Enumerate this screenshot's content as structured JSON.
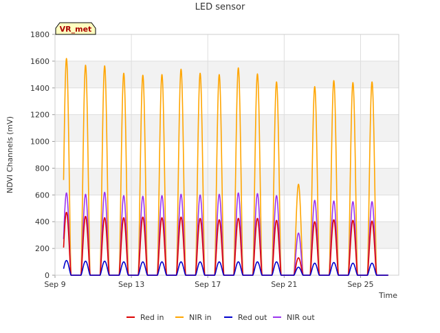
{
  "chart_data": {
    "type": "line",
    "title": "LED sensor",
    "xlabel": "Time",
    "ylabel": "NDVI Channels (mV)",
    "site_label": "VR_met",
    "x_ticks": [
      "Sep 9",
      "Sep 13",
      "Sep 17",
      "Sep 21",
      "Sep 25"
    ],
    "x_tick_days": [
      9,
      13,
      17,
      21,
      25
    ],
    "xlim": [
      9,
      27
    ],
    "ylim": [
      0,
      1800
    ],
    "y_ticks": [
      0,
      200,
      400,
      600,
      800,
      1000,
      1200,
      1400,
      1600,
      1800
    ],
    "grid": true,
    "legend_position": "bottom",
    "peak_days": [
      9.6,
      10.6,
      11.6,
      12.6,
      13.6,
      14.6,
      15.6,
      16.6,
      17.6,
      18.6,
      19.6,
      20.6,
      21.75,
      22.6,
      23.6,
      24.6,
      25.6
    ],
    "series": [
      {
        "name": "Red in",
        "color": "#dd0000",
        "peaks": [
          470,
          440,
          430,
          430,
          435,
          430,
          435,
          425,
          415,
          425,
          425,
          410,
          130,
          400,
          415,
          410,
          405
        ]
      },
      {
        "name": "NIR in",
        "color": "#ffa500",
        "peaks": [
          1620,
          1570,
          1565,
          1510,
          1495,
          1500,
          1540,
          1510,
          1500,
          1550,
          1505,
          1445,
          680,
          1410,
          1455,
          1440,
          1445
        ]
      },
      {
        "name": "Red out",
        "color": "#0000cc",
        "peaks": [
          110,
          105,
          105,
          100,
          100,
          100,
          100,
          100,
          100,
          100,
          100,
          100,
          60,
          90,
          95,
          90,
          90
        ]
      },
      {
        "name": "NIR out",
        "color": "#9933ee",
        "peaks": [
          615,
          605,
          620,
          595,
          590,
          595,
          605,
          600,
          605,
          615,
          610,
          595,
          315,
          560,
          555,
          550,
          550
        ]
      }
    ]
  }
}
